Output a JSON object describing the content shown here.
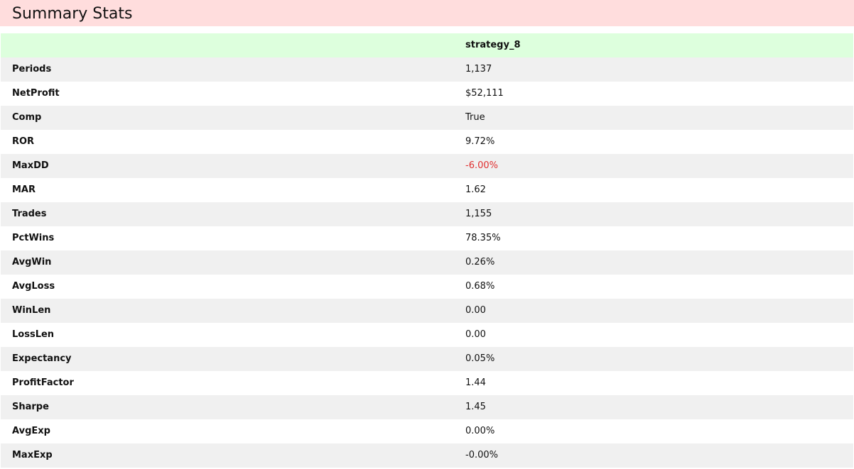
{
  "title": "Summary Stats",
  "table": {
    "header": [
      "",
      "strategy_8"
    ],
    "rows": [
      {
        "label": "Periods",
        "value": "1,137"
      },
      {
        "label": "NetProfit",
        "value": "$52,111"
      },
      {
        "label": "Comp",
        "value": "True"
      },
      {
        "label": "ROR",
        "value": "9.72%"
      },
      {
        "label": "MaxDD",
        "value": "-6.00%",
        "negative": true
      },
      {
        "label": "MAR",
        "value": "1.62"
      },
      {
        "label": "Trades",
        "value": "1,155"
      },
      {
        "label": "PctWins",
        "value": "78.35%"
      },
      {
        "label": "AvgWin",
        "value": "0.26%"
      },
      {
        "label": "AvgLoss",
        "value": "0.68%"
      },
      {
        "label": "WinLen",
        "value": "0.00"
      },
      {
        "label": "LossLen",
        "value": "0.00"
      },
      {
        "label": "Expectancy",
        "value": "0.05%"
      },
      {
        "label": "ProfitFactor",
        "value": "1.44"
      },
      {
        "label": "Sharpe",
        "value": "1.45"
      },
      {
        "label": "AvgExp",
        "value": "0.00%"
      },
      {
        "label": "MaxExp",
        "value": "-0.00%"
      }
    ]
  },
  "colors": {
    "title_background": "#ffdddd",
    "header_background": "#ddffdd",
    "odd_row_background": "#f0f0f0",
    "even_row_background": "#ffffff",
    "negative_value": "#e03030"
  }
}
